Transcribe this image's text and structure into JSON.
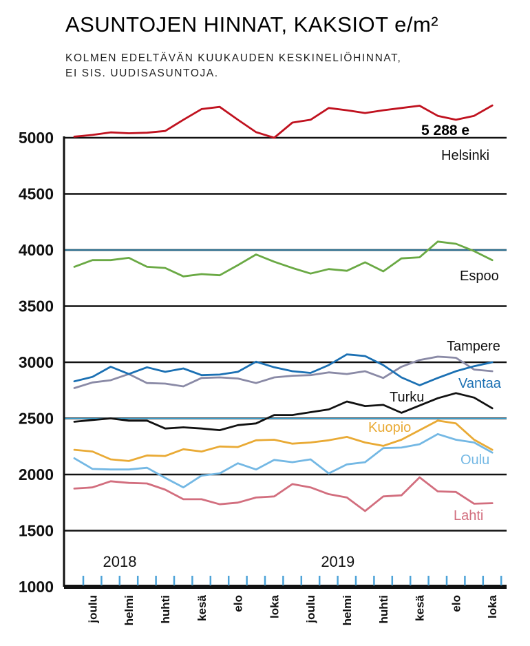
{
  "chart_data": {
    "type": "line",
    "title": "ASUNTOJEN HINNAT, KAKSIOT e/m²",
    "subtitle_lines": [
      "KOLMEN EDELTÄVÄN KUUKAUDEN KESKINELIÖHINNAT,",
      "EI SIS. UUDISASUNTOJA."
    ],
    "ylim": [
      1000,
      5000
    ],
    "yticks": [
      5000,
      4500,
      4000,
      3500,
      3000,
      2500,
      2000,
      1500,
      1000
    ],
    "x_periods": 24,
    "x_tick_labels": [
      {
        "label": "joulu",
        "index": 1
      },
      {
        "label": "helmi",
        "index": 3
      },
      {
        "label": "huhti",
        "index": 5
      },
      {
        "label": "kesä",
        "index": 7
      },
      {
        "label": "elo",
        "index": 9
      },
      {
        "label": "loka",
        "index": 11
      },
      {
        "label": "joulu",
        "index": 13
      },
      {
        "label": "helmi",
        "index": 15
      },
      {
        "label": "huhti",
        "index": 17
      },
      {
        "label": "kesä",
        "index": 19
      },
      {
        "label": "elo",
        "index": 21
      },
      {
        "label": "loka",
        "index": 23
      }
    ],
    "year_labels": [
      {
        "label": "2018",
        "index": 2.5
      },
      {
        "label": "2019",
        "index": 14.5
      }
    ],
    "highlight_lines": [
      4000,
      2500
    ],
    "annotation": {
      "text": "5 288 e",
      "value": 5288
    },
    "series": [
      {
        "name": "Helsinki",
        "color": "#c0121f",
        "values": [
          5010,
          5025,
          5048,
          5040,
          5045,
          5060,
          5160,
          5255,
          5275,
          5160,
          5050,
          5000,
          5135,
          5160,
          5265,
          5245,
          5220,
          5245,
          5265,
          5285,
          5195,
          5160,
          5195,
          5288
        ]
      },
      {
        "name": "Espoo",
        "color": "#6aa944",
        "values": [
          3850,
          3910,
          3910,
          3930,
          3850,
          3840,
          3765,
          3785,
          3775,
          3865,
          3960,
          3895,
          3840,
          3790,
          3830,
          3815,
          3890,
          3810,
          3925,
          3935,
          4075,
          4055,
          3990,
          3910
        ]
      },
      {
        "name": "Tampere",
        "color": "#8a8aa6",
        "values": [
          2770,
          2820,
          2840,
          2895,
          2815,
          2810,
          2785,
          2860,
          2865,
          2855,
          2815,
          2865,
          2880,
          2885,
          2910,
          2895,
          2920,
          2860,
          2960,
          3020,
          3050,
          3040,
          2935,
          2920
        ]
      },
      {
        "name": "Vantaa",
        "color": "#1b70b3",
        "values": [
          2830,
          2870,
          2960,
          2895,
          2955,
          2915,
          2945,
          2885,
          2890,
          2915,
          3005,
          2955,
          2920,
          2905,
          2975,
          3070,
          3055,
          2975,
          2865,
          2795,
          2860,
          2920,
          2965,
          3000
        ]
      },
      {
        "name": "Turku",
        "color": "#111111",
        "values": [
          2470,
          2485,
          2500,
          2480,
          2480,
          2410,
          2420,
          2410,
          2395,
          2440,
          2455,
          2530,
          2530,
          2555,
          2580,
          2650,
          2610,
          2620,
          2550,
          2615,
          2680,
          2725,
          2685,
          2590
        ]
      },
      {
        "name": "Kuopio",
        "color": "#e9aa35",
        "values": [
          2220,
          2205,
          2135,
          2120,
          2170,
          2165,
          2225,
          2205,
          2250,
          2245,
          2305,
          2310,
          2275,
          2285,
          2305,
          2335,
          2285,
          2255,
          2310,
          2395,
          2480,
          2455,
          2310,
          2220
        ]
      },
      {
        "name": "Oulu",
        "color": "#74b8e4",
        "values": [
          2145,
          2050,
          2045,
          2045,
          2060,
          1970,
          1885,
          1990,
          2010,
          2100,
          2045,
          2130,
          2110,
          2135,
          2010,
          2090,
          2110,
          2235,
          2240,
          2270,
          2360,
          2310,
          2285,
          2195
        ]
      },
      {
        "name": "Lahti",
        "color": "#d26e7e",
        "values": [
          1875,
          1885,
          1940,
          1925,
          1920,
          1865,
          1780,
          1780,
          1735,
          1750,
          1795,
          1805,
          1915,
          1885,
          1825,
          1795,
          1675,
          1805,
          1815,
          1975,
          1850,
          1845,
          1740,
          1745
        ]
      }
    ]
  },
  "series_labels": {
    "Helsinki": "Helsinki",
    "Espoo": "Espoo",
    "Tampere": "Tampere",
    "Vantaa": "Vantaa",
    "Turku": "Turku",
    "Kuopio": "Kuopio",
    "Oulu": "Oulu",
    "Lahti": "Lahti"
  }
}
